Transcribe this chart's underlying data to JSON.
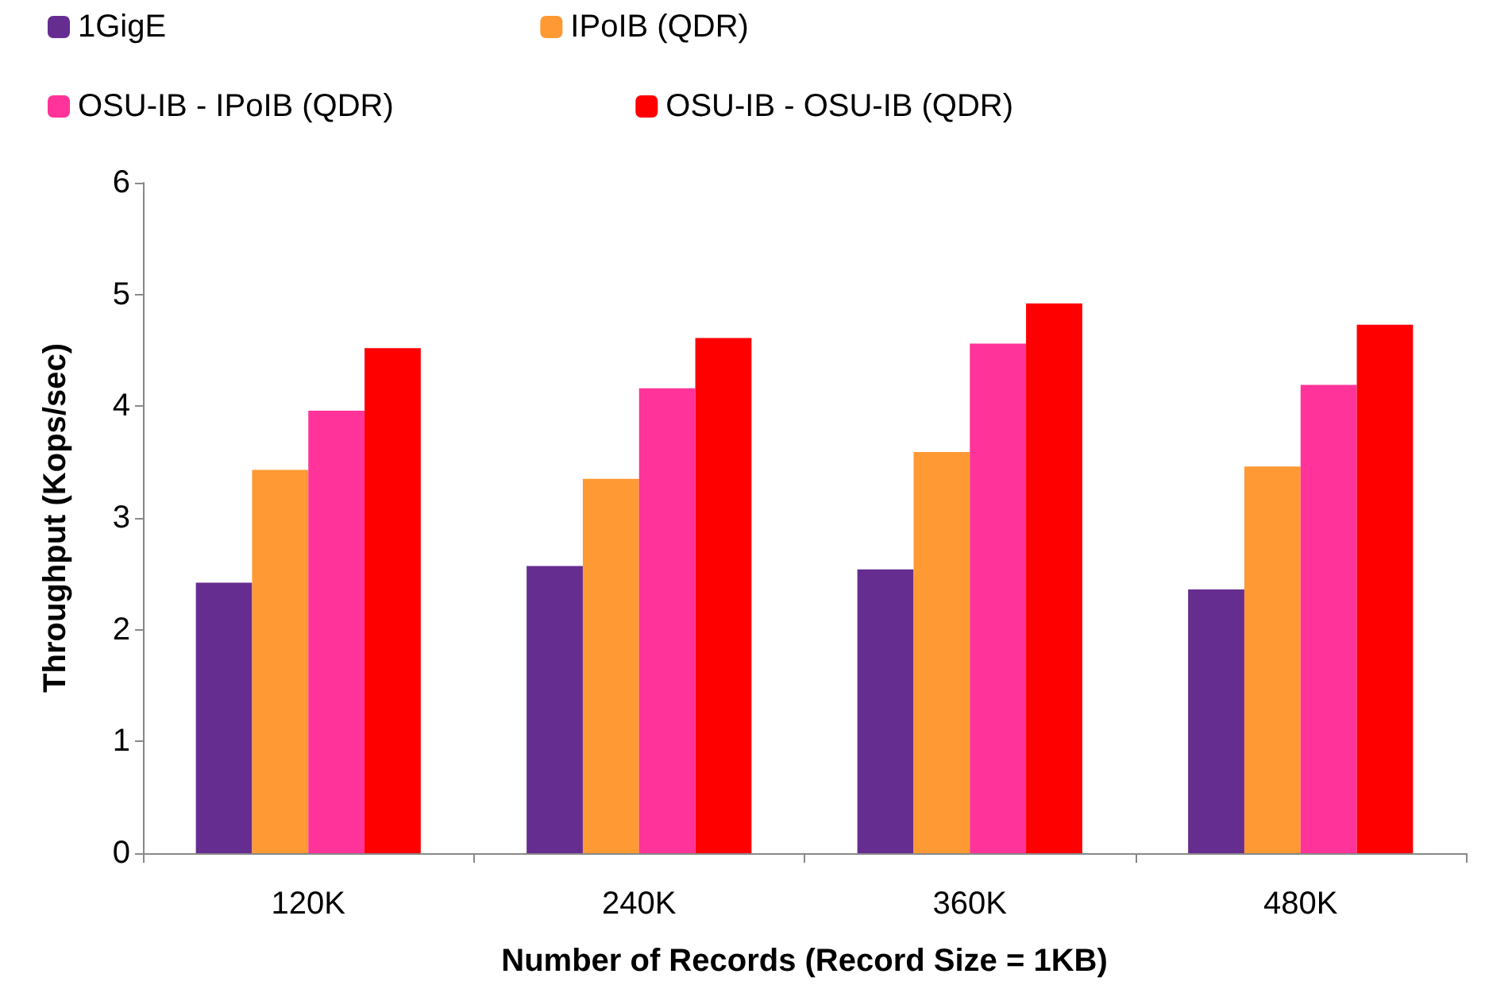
{
  "chart_data": {
    "type": "bar",
    "xlabel": "Number of Records (Record Size = 1KB)",
    "ylabel": "Throughput (Kops/sec)",
    "categories": [
      "120K",
      "240K",
      "360K",
      "480K"
    ],
    "series": [
      {
        "name": "1GigE",
        "color": "#662d91",
        "values": [
          2.42,
          2.57,
          2.54,
          2.36
        ]
      },
      {
        "name": "IPoIB (QDR)",
        "color": "#ff9933",
        "values": [
          3.43,
          3.35,
          3.59,
          3.46
        ]
      },
      {
        "name": "OSU-IB - IPoIB (QDR)",
        "color": "#ff3399",
        "values": [
          3.96,
          4.16,
          4.56,
          4.19
        ]
      },
      {
        "name": "OSU-IB - OSU-IB (QDR)",
        "color": "#ff0000",
        "values": [
          4.52,
          4.61,
          4.92,
          4.73
        ]
      }
    ],
    "ylim": [
      0,
      6
    ],
    "yticks": [
      0,
      1,
      2,
      3,
      4,
      5,
      6
    ],
    "grid": false,
    "legend": "top"
  }
}
